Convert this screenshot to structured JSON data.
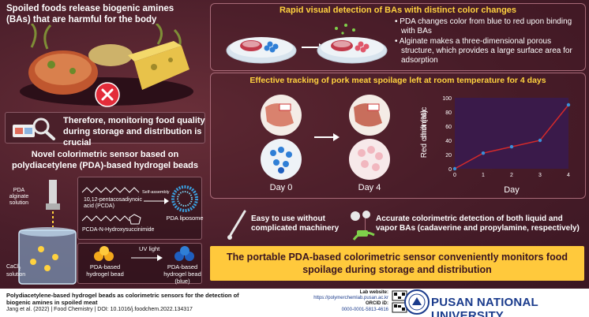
{
  "headline": "Spoiled foods release biogenic amines (BAs) that are harmful for the body",
  "monitoring_text": "Therefore, monitoring food quality during storage and distribution is crucial",
  "sensor_title": "Novel colorimetric sensor based on polydiacetylene (PDA)-based hydrogel beads",
  "sensor_labels": {
    "pda_alginate": "PDA alginate solution",
    "pcda": "10,12-pentacosadiynoic acid (PCDA)",
    "pcda_nhs": "PCDA-N-Hydroxysuccinimide",
    "self_assembly": "Self-assembly",
    "pda_liposome": "PDA liposome",
    "cacl2": "CaCl",
    "cacl2_sub": "2",
    "cacl2_solution": "solution",
    "pda_bead": "PDA-based hydrogel bead",
    "uv_light": "UV light",
    "pda_bead_blue": "PDA-based hydrogel bead (blue)"
  },
  "top_title": "Rapid visual detection of BAs with distinct color changes",
  "bullets": [
    "PDA changes color from blue to red upon binding with BAs",
    "Alginate makes a three-dimensional porous structure, which provides a large surface area for adsorption"
  ],
  "mid_title": "Effective tracking of pork meat spoilage left at room temperature for 4 days",
  "day_labels": [
    "Day 0",
    "Day 4"
  ],
  "ease_text": "Easy to use without complicated machinery",
  "accurate_text": "Accurate colorimetric detection of both liquid and vapor BAs (cadaverine and propylamine, respectively)",
  "conclusion": "The portable PDA-based colorimetric sensor conveniently monitors food spoilage during storage and distribution",
  "chart_data": {
    "type": "line",
    "x": [
      0,
      1,
      2,
      3,
      4
    ],
    "values": [
      0,
      22,
      31,
      40,
      90
    ],
    "xlabel": "Day",
    "ylabel": "Red chromatic shift (%)",
    "xlim": [
      0,
      4
    ],
    "ylim": [
      0,
      100
    ],
    "xticks": [
      "0",
      "1",
      "2",
      "3",
      "4"
    ],
    "yticks": [
      "0",
      "20",
      "40",
      "60",
      "80",
      "100"
    ],
    "colors": {
      "line": "#d42a2a",
      "marker": "#3a8fd8",
      "plot_bg": "#3a1a4a"
    }
  },
  "footer": {
    "paper_title": "Polydiacetylene-based hydrogel beads as colorimetric sensors for the detection of biogenic amines in spoiled meat",
    "citation": "Jang et al. (2022) | Food Chemistry | DOI: 10.1016/j.foodchem.2022.134317",
    "lab_label": "Lab website:",
    "lab_url": "https://polymerchemlab.pusan.ac.kr",
    "orcid_label": "ORCID iD:",
    "orcid": "0000-0001-5813-4616",
    "university": "PUSAN NATIONAL UNIVERSITY"
  },
  "colors": {
    "background": "#4a1e2a",
    "accent_yellow": "#ffd23f",
    "conclusion_bg": "#ffc93c",
    "university_blue": "#1a3b8c",
    "pda_blue": "#2f7fd6",
    "pda_red": "#e0566a"
  }
}
